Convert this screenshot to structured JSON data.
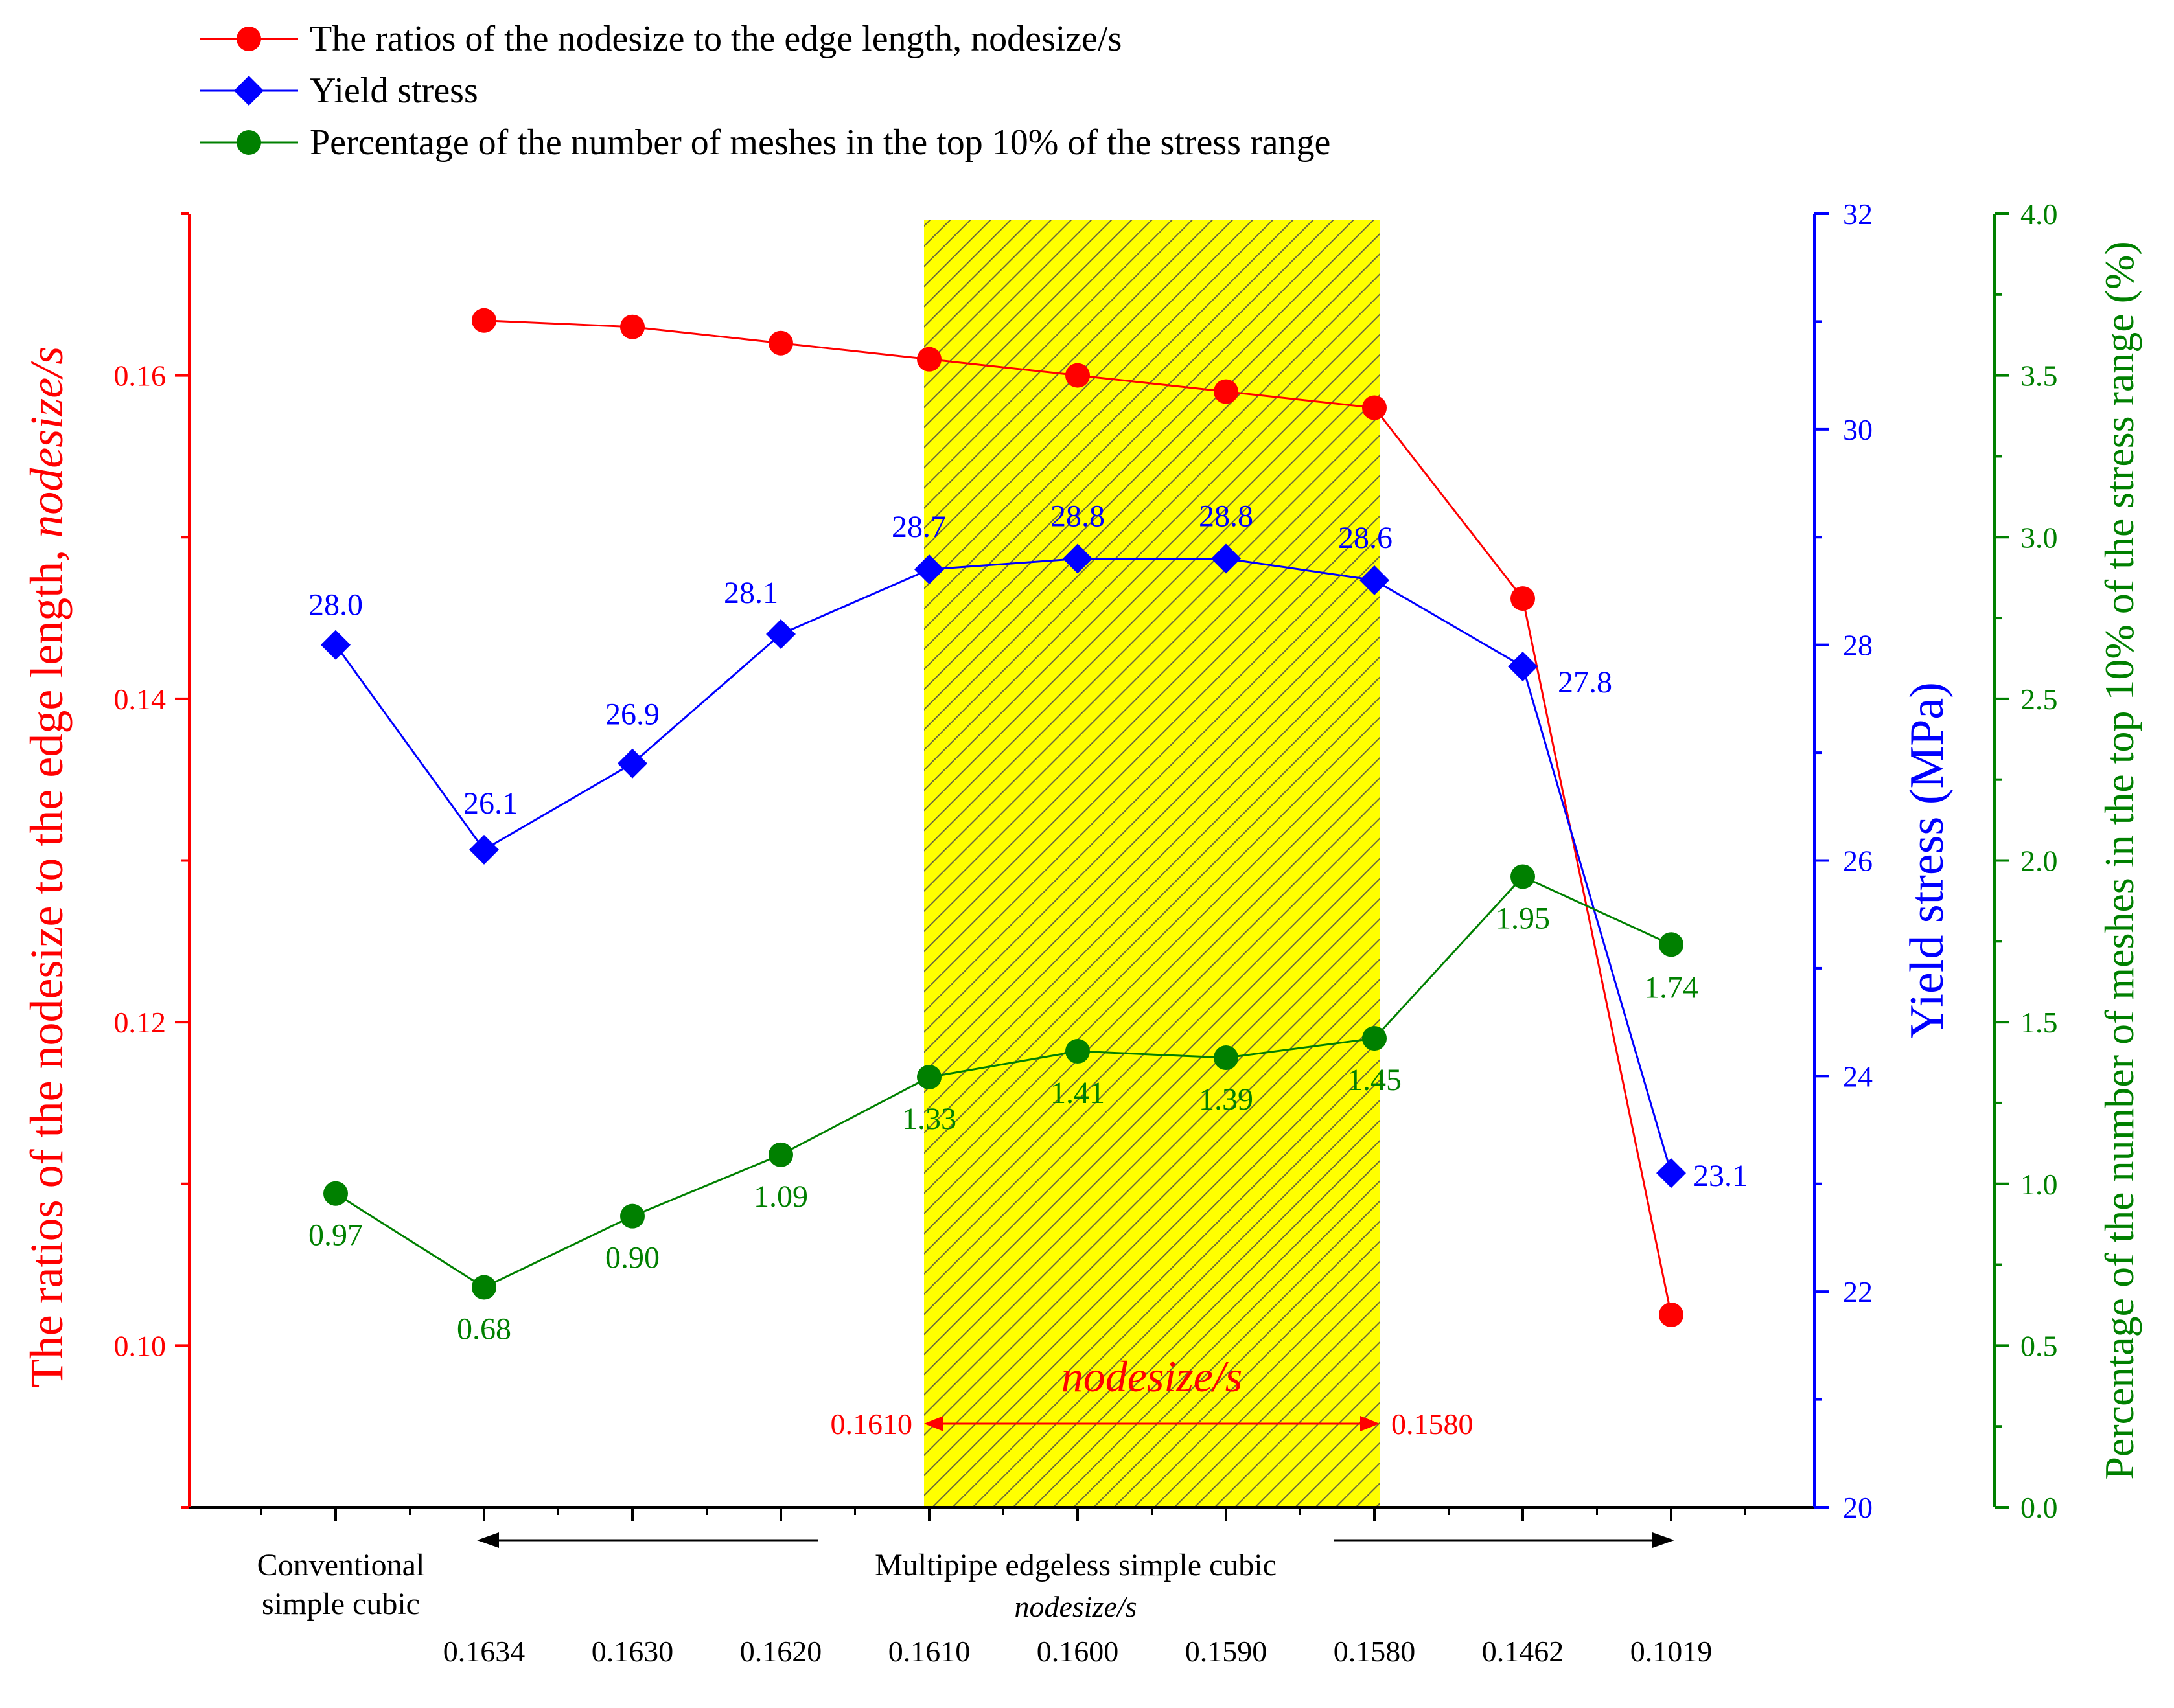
{
  "chart_data": {
    "type": "line",
    "legend": {
      "placement": "top-left",
      "items": [
        {
          "label": "The ratios of the nodesize to the edge length, nodesize/s",
          "series": "ratio"
        },
        {
          "label": "Yield stress",
          "series": "yield"
        },
        {
          "label": "Percentage of the number of meshes in the top 10% of the stress range",
          "series": "pct"
        }
      ]
    },
    "x": {
      "categories": [
        "",
        "0.1634",
        "0.1630",
        "0.1620",
        "0.1610",
        "0.1600",
        "0.1590",
        "0.1580",
        "0.1462",
        "0.1019"
      ],
      "conventional_label": [
        "Conventional",
        "simple cubic"
      ],
      "multipipe_label": "Multipipe edgeless simple cubic",
      "sub_label": "nodesize/s"
    },
    "axes": {
      "left": {
        "label_prefix": "The ratios of the nodesize to the edge length, ",
        "label_italic": "nodesize/s",
        "range": [
          0.09,
          0.17
        ],
        "ticks": [
          "0.10",
          "0.12",
          "0.14",
          "0.16"
        ],
        "color": "#ff0000"
      },
      "right1": {
        "label": "Yield stress (MPa)",
        "range": [
          20,
          32
        ],
        "ticks": [
          "20",
          "22",
          "24",
          "26",
          "28",
          "30",
          "32"
        ],
        "color": "#0000ff"
      },
      "right2": {
        "label": "Percentage of the number of meshes in the top 10% of the stress range (%)",
        "range": [
          0,
          4
        ],
        "ticks": [
          "0.0",
          "0.5",
          "1.0",
          "1.5",
          "2.0",
          "2.5",
          "3.0",
          "3.5",
          "4.0"
        ],
        "color": "#008000"
      }
    },
    "series": [
      {
        "name": "ratio",
        "axis": "left",
        "color": "#ff0000",
        "marker": "circle",
        "points": [
          [
            1,
            0.1634
          ],
          [
            2,
            0.163
          ],
          [
            3,
            0.162
          ],
          [
            4,
            0.161
          ],
          [
            5,
            0.16
          ],
          [
            6,
            0.159
          ],
          [
            7,
            0.158
          ],
          [
            8,
            0.1462
          ],
          [
            9,
            0.1019
          ]
        ],
        "labels": []
      },
      {
        "name": "yield",
        "axis": "right1",
        "color": "#0000ff",
        "marker": "diamond",
        "points": [
          [
            0,
            28.0
          ],
          [
            1,
            26.1
          ],
          [
            2,
            26.9
          ],
          [
            3,
            28.1
          ],
          [
            4,
            28.7
          ],
          [
            5,
            28.8
          ],
          [
            6,
            28.8
          ],
          [
            7,
            28.6
          ],
          [
            8,
            27.8
          ],
          [
            9,
            23.1
          ]
        ],
        "labels": [
          "28.0",
          "26.1",
          "26.9",
          "28.1",
          "28.7",
          "28.8",
          "28.8",
          "28.6",
          "27.8",
          "23.1"
        ]
      },
      {
        "name": "pct",
        "axis": "right2",
        "color": "#008000",
        "marker": "circle",
        "points": [
          [
            0,
            0.97
          ],
          [
            1,
            0.68
          ],
          [
            2,
            0.9
          ],
          [
            3,
            1.09
          ],
          [
            4,
            1.33
          ],
          [
            5,
            1.41
          ],
          [
            6,
            1.39
          ],
          [
            7,
            1.45
          ],
          [
            8,
            1.95
          ],
          [
            9,
            1.74
          ]
        ],
        "labels": [
          "0.97",
          "0.68",
          "0.90",
          "1.09",
          "1.33",
          "1.41",
          "1.39",
          "1.45",
          "1.95",
          "1.74"
        ]
      }
    ],
    "highlight": {
      "from": 4,
      "to": 7,
      "fill": "#ffff00",
      "title": "nodesize/s",
      "left_value": "0.1610",
      "right_value": "0.1580"
    }
  }
}
